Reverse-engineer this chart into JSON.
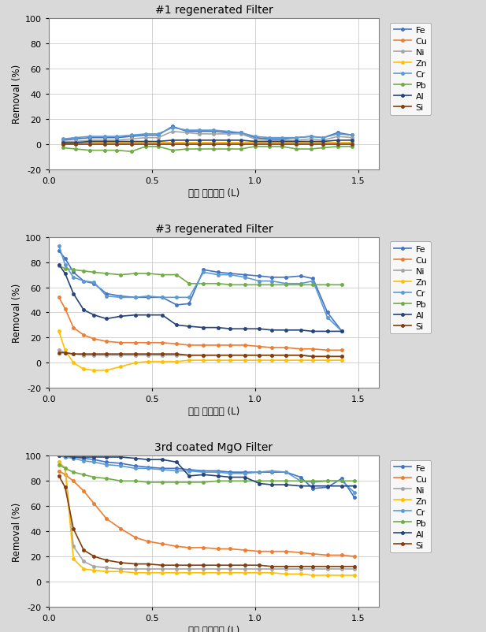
{
  "titles": [
    "#1 regenerated Filter",
    "#3 regenerated Filter",
    "3rd coated MgO Filter"
  ],
  "xlabel": "누적 처리용량 (L)",
  "ylabel": "Removal (%)",
  "legend_labels": [
    "Fe",
    "Cu",
    "Ni",
    "Zn",
    "Cr",
    "Pb",
    "Al",
    "Si"
  ],
  "colors": [
    "#4472C4",
    "#ED7D31",
    "#A5A5A5",
    "#FFC000",
    "#5B9BD5",
    "#70AD47",
    "#264478",
    "#843C0C"
  ],
  "marker": "o",
  "markersize": 3,
  "linewidth": 1.2,
  "ylim": [
    -20,
    100
  ],
  "xlim": [
    0.0,
    1.6
  ],
  "yticks": [
    -20,
    0,
    20,
    40,
    60,
    80,
    100
  ],
  "xticks": [
    0.0,
    0.5,
    1.0,
    1.5
  ],
  "fig_facecolor": "#D9D9D9",
  "ax_facecolor": "#FFFFFF",
  "chart1": {
    "x": [
      0.07,
      0.13,
      0.2,
      0.27,
      0.33,
      0.4,
      0.47,
      0.53,
      0.6,
      0.67,
      0.73,
      0.8,
      0.87,
      0.93,
      1.0,
      1.07,
      1.13,
      1.2,
      1.27,
      1.33,
      1.4,
      1.47
    ],
    "Fe": [
      3,
      4,
      5,
      5,
      5,
      6,
      7,
      7,
      14,
      10,
      10,
      10,
      9,
      9,
      5,
      4,
      4,
      5,
      6,
      5,
      9,
      7
    ],
    "Cu": [
      1,
      1,
      1,
      1,
      1,
      1,
      1,
      1,
      1,
      1,
      1,
      1,
      1,
      1,
      1,
      1,
      1,
      1,
      1,
      1,
      1,
      1
    ],
    "Ni": [
      2,
      2,
      3,
      3,
      3,
      4,
      5,
      5,
      10,
      9,
      8,
      8,
      8,
      8,
      4,
      3,
      3,
      3,
      4,
      3,
      6,
      5
    ],
    "Zn": [
      1,
      1,
      1,
      1,
      1,
      1,
      1,
      1,
      1,
      1,
      1,
      1,
      1,
      1,
      1,
      1,
      1,
      1,
      1,
      1,
      1,
      1
    ],
    "Cr": [
      4,
      5,
      6,
      6,
      6,
      7,
      8,
      8,
      13,
      11,
      11,
      11,
      10,
      9,
      6,
      5,
      5,
      5,
      6,
      5,
      8,
      7
    ],
    "Pb": [
      -3,
      -4,
      -5,
      -5,
      -5,
      -6,
      -2,
      -2,
      -5,
      -4,
      -4,
      -4,
      -4,
      -4,
      -2,
      -2,
      -2,
      -4,
      -4,
      -3,
      -2,
      -2
    ],
    "Al": [
      1,
      1,
      2,
      2,
      2,
      2,
      2,
      2,
      3,
      3,
      3,
      3,
      3,
      3,
      2,
      2,
      2,
      2,
      2,
      2,
      3,
      3
    ],
    "Si": [
      0,
      0,
      0,
      0,
      0,
      0,
      0,
      0,
      0,
      0,
      0,
      0,
      0,
      0,
      0,
      0,
      0,
      0,
      0,
      0,
      0,
      0
    ]
  },
  "chart2": {
    "x": [
      0.05,
      0.08,
      0.12,
      0.17,
      0.22,
      0.28,
      0.35,
      0.42,
      0.48,
      0.55,
      0.62,
      0.68,
      0.75,
      0.82,
      0.88,
      0.95,
      1.02,
      1.08,
      1.15,
      1.22,
      1.28,
      1.35,
      1.42
    ],
    "Fe": [
      89,
      83,
      72,
      65,
      63,
      55,
      53,
      52,
      52,
      52,
      46,
      47,
      74,
      72,
      71,
      70,
      69,
      68,
      68,
      69,
      67,
      40,
      25
    ],
    "Cu": [
      52,
      43,
      28,
      22,
      19,
      17,
      16,
      16,
      16,
      16,
      15,
      14,
      14,
      14,
      14,
      14,
      13,
      12,
      12,
      11,
      11,
      10,
      10
    ],
    "Ni": [
      10,
      8,
      7,
      6,
      6,
      6,
      6,
      6,
      6,
      6,
      6,
      6,
      6,
      6,
      6,
      6,
      6,
      6,
      6,
      6,
      5,
      5,
      5
    ],
    "Zn": [
      25,
      10,
      0,
      -5,
      -6,
      -6,
      -3,
      0,
      1,
      1,
      1,
      2,
      2,
      2,
      2,
      2,
      2,
      2,
      2,
      2,
      2,
      2,
      2
    ],
    "Cr": [
      93,
      78,
      68,
      65,
      64,
      53,
      52,
      52,
      53,
      52,
      52,
      52,
      72,
      70,
      70,
      68,
      65,
      65,
      63,
      63,
      65,
      36,
      25
    ],
    "Pb": [
      77,
      75,
      74,
      73,
      72,
      71,
      70,
      71,
      71,
      70,
      70,
      63,
      63,
      63,
      62,
      62,
      62,
      62,
      62,
      62,
      62,
      62,
      62
    ],
    "Al": [
      78,
      71,
      55,
      42,
      38,
      35,
      37,
      38,
      38,
      38,
      30,
      29,
      28,
      28,
      27,
      27,
      27,
      26,
      26,
      26,
      25,
      25,
      25
    ],
    "Si": [
      8,
      8,
      7,
      7,
      7,
      7,
      7,
      7,
      7,
      7,
      7,
      6,
      6,
      6,
      6,
      6,
      6,
      6,
      6,
      6,
      5,
      5,
      5
    ]
  },
  "chart3": {
    "x": [
      0.05,
      0.08,
      0.12,
      0.17,
      0.22,
      0.28,
      0.35,
      0.42,
      0.48,
      0.55,
      0.62,
      0.68,
      0.75,
      0.82,
      0.88,
      0.95,
      1.02,
      1.08,
      1.15,
      1.22,
      1.28,
      1.35,
      1.42,
      1.48
    ],
    "Fe": [
      100,
      99,
      99,
      98,
      97,
      95,
      94,
      92,
      91,
      90,
      90,
      89,
      88,
      88,
      87,
      87,
      87,
      87,
      87,
      83,
      74,
      75,
      82,
      67
    ],
    "Cu": [
      88,
      85,
      80,
      72,
      62,
      50,
      42,
      35,
      32,
      30,
      28,
      27,
      27,
      26,
      26,
      25,
      24,
      24,
      24,
      23,
      22,
      21,
      21,
      20
    ],
    "Ni": [
      95,
      90,
      28,
      16,
      12,
      11,
      10,
      10,
      10,
      10,
      10,
      10,
      10,
      10,
      10,
      10,
      10,
      10,
      10,
      10,
      10,
      10,
      10,
      10
    ],
    "Zn": [
      95,
      90,
      18,
      10,
      9,
      8,
      8,
      7,
      7,
      7,
      7,
      7,
      7,
      7,
      7,
      7,
      7,
      7,
      6,
      6,
      5,
      5,
      5,
      5
    ],
    "Cr": [
      100,
      99,
      98,
      96,
      95,
      93,
      92,
      90,
      90,
      89,
      88,
      88,
      87,
      87,
      86,
      86,
      87,
      88,
      87,
      80,
      79,
      80,
      80,
      71
    ],
    "Pb": [
      93,
      90,
      87,
      85,
      83,
      82,
      80,
      80,
      79,
      79,
      79,
      79,
      79,
      80,
      80,
      80,
      80,
      80,
      80,
      80,
      80,
      80,
      80,
      80
    ],
    "Al": [
      100,
      100,
      99,
      99,
      99,
      99,
      99,
      98,
      97,
      97,
      95,
      84,
      85,
      84,
      83,
      83,
      78,
      77,
      77,
      76,
      76,
      76,
      76,
      76
    ],
    "Si": [
      84,
      75,
      42,
      25,
      20,
      17,
      15,
      14,
      14,
      13,
      13,
      13,
      13,
      13,
      13,
      13,
      13,
      12,
      12,
      12,
      12,
      12,
      12,
      12
    ]
  }
}
